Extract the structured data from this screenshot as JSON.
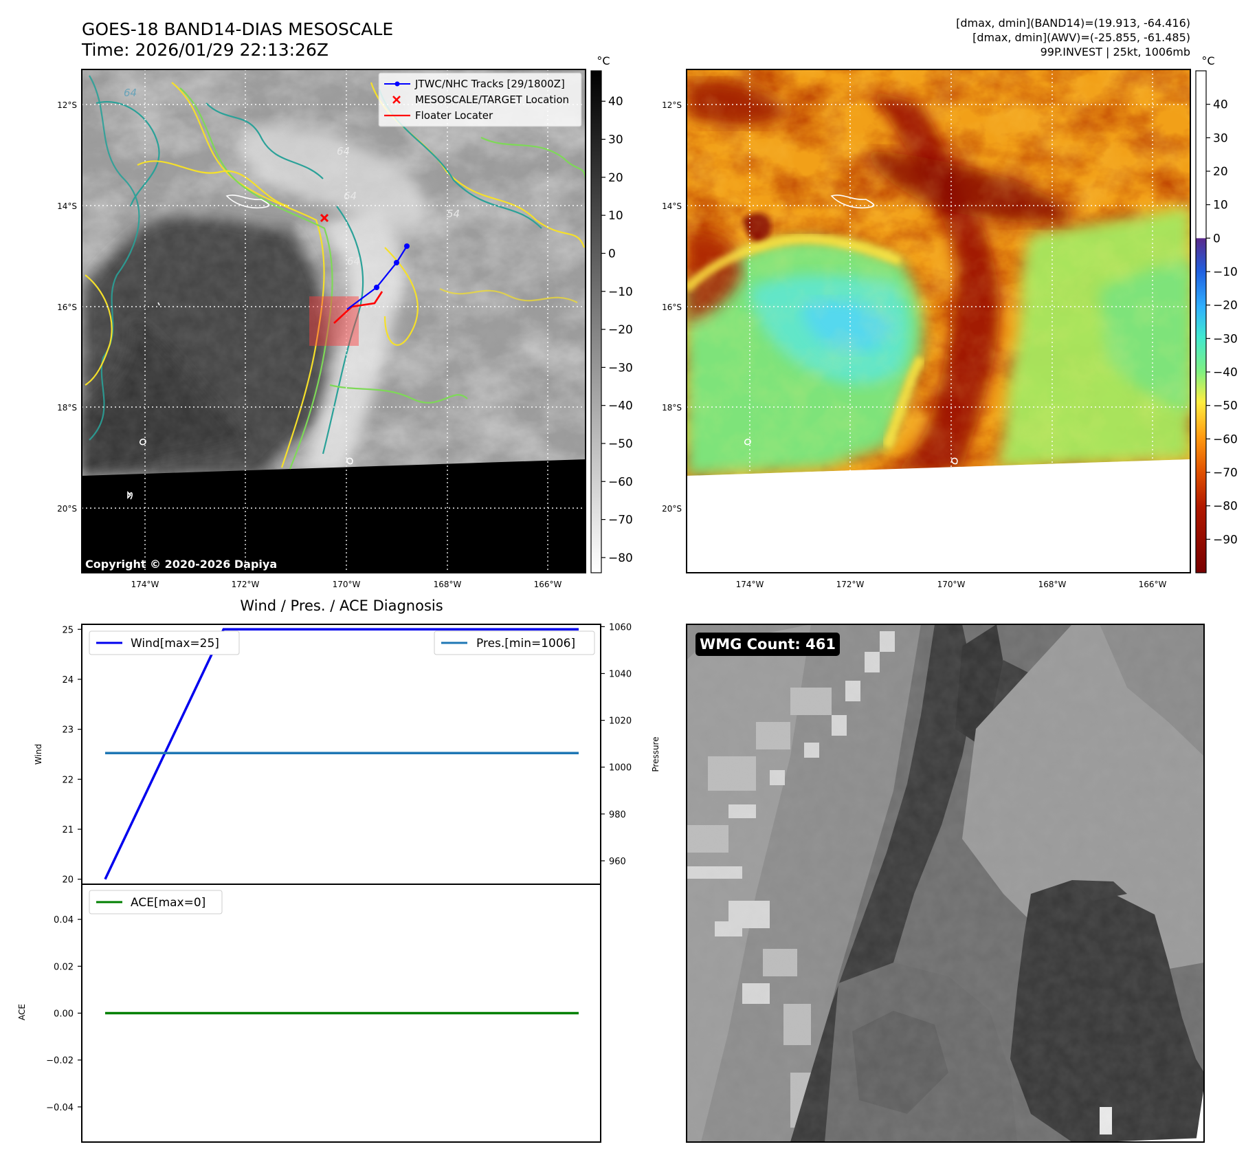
{
  "header": {
    "title_line1": "GOES-18 BAND14-DIAS MESOSCALE",
    "title_line2": "Time: 2026/01/29 22:13:26Z",
    "right_line1": "[dmax, dmin](BAND14)=(19.913, -64.416)",
    "right_line2": "[dmax, dmin](AWV)=(-25.855, -61.485)",
    "right_line3": "99P.INVEST | 25kt, 1006mb"
  },
  "ir_panel": {
    "colorbar_unit": "°C",
    "colorbar_ticks": [
      40,
      30,
      20,
      10,
      0,
      -10,
      -20,
      -30,
      -40,
      -50,
      -60,
      -70,
      -80
    ],
    "colorbar_range": [
      -84,
      48
    ],
    "lat_labels": [
      "12°S",
      "14°S",
      "16°S",
      "18°S",
      "20°S"
    ],
    "lon_labels": [
      "174°W",
      "172°W",
      "170°W",
      "168°W",
      "166°W"
    ],
    "legend": [
      "JTWC/NHC Tracks [29/1800Z]",
      "MESOSCALE/TARGET Location",
      "Floater Locater"
    ],
    "copyright": "Copyright © 2020-2026 Dapiya",
    "contour_labels": [
      "64",
      "64",
      "64",
      "54",
      "64"
    ]
  },
  "awv_panel": {
    "colorbar_unit": "°C",
    "colorbar_ticks": [
      40,
      30,
      20,
      10,
      0,
      -10,
      -20,
      -30,
      -40,
      -50,
      -60,
      -70,
      -80,
      -90
    ],
    "colorbar_range": [
      -100,
      50
    ],
    "lat_labels": [
      "12°S",
      "14°S",
      "16°S",
      "18°S",
      "20°S"
    ],
    "lon_labels": [
      "174°W",
      "172°W",
      "170°W",
      "168°W",
      "166°W"
    ]
  },
  "chart_data": [
    {
      "type": "line",
      "title": "Wind / Pres. / ACE Diagnosis",
      "ylabel": "Wind",
      "ylabel_right": "Pressure",
      "ylim": [
        19.9,
        25.1
      ],
      "ylim_right": [
        950,
        1061
      ],
      "yticks": [
        20,
        21,
        22,
        23,
        24,
        25
      ],
      "yticks_right": [
        960,
        980,
        1000,
        1020,
        1040,
        1060
      ],
      "x": [
        0,
        1,
        2,
        3,
        4
      ],
      "series": [
        {
          "name": "Wind[max=25]",
          "axis": "left",
          "color": "#0000ee",
          "values": [
            20,
            25,
            25,
            25,
            25
          ]
        },
        {
          "name": "Pres.[min=1006]",
          "axis": "right",
          "color": "#1f77b4",
          "values": [
            1006,
            1006,
            1006,
            1006,
            1006
          ]
        }
      ]
    },
    {
      "type": "line",
      "ylabel": "ACE",
      "ylim": [
        -0.055,
        0.055
      ],
      "yticks": [
        0.04,
        0.02,
        0.0,
        -0.02,
        -0.04
      ],
      "ytick_labels": [
        "0.04",
        "0.02",
        "0.00",
        "−0.02",
        "−0.04"
      ],
      "x": [
        0,
        1,
        2,
        3,
        4
      ],
      "series": [
        {
          "name": "ACE[max=0]",
          "color": "#008000",
          "values": [
            0,
            0,
            0,
            0,
            0
          ]
        }
      ]
    }
  ],
  "wmg_panel": {
    "label": "WMG Count: 461"
  }
}
